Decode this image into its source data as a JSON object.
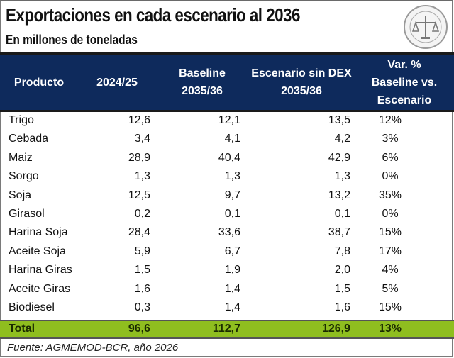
{
  "title": "Exportaciones en cada escenario al 2036",
  "subtitle": "En millones de toneladas",
  "logo": "bcr-seal-icon",
  "colors": {
    "header_bg": "#0e2a5c",
    "total_bg": "#8fbe1f"
  },
  "table": {
    "headers": [
      {
        "lines": [
          "Producto"
        ]
      },
      {
        "lines": [
          "2024/25"
        ]
      },
      {
        "lines": [
          "Baseline",
          "2035/36"
        ]
      },
      {
        "lines": [
          "Escenario sin DEX",
          "2035/36"
        ]
      },
      {
        "lines": [
          "Var. %",
          "Baseline vs.",
          "Escenario"
        ]
      }
    ],
    "rows": [
      [
        "Trigo",
        "12,6",
        "12,1",
        "13,5",
        "12%"
      ],
      [
        "Cebada",
        "3,4",
        "4,1",
        "4,2",
        "3%"
      ],
      [
        "Maiz",
        "28,9",
        "40,4",
        "42,9",
        "6%"
      ],
      [
        "Sorgo",
        "1,3",
        "1,3",
        "1,3",
        "0%"
      ],
      [
        "Soja",
        "12,5",
        "9,7",
        "13,2",
        "35%"
      ],
      [
        "Girasol",
        "0,2",
        "0,1",
        "0,1",
        "0%"
      ],
      [
        "Harina Soja",
        "28,4",
        "33,6",
        "38,7",
        "15%"
      ],
      [
        "Aceite Soja",
        "5,9",
        "6,7",
        "7,8",
        "17%"
      ],
      [
        "Harina Giras",
        "1,5",
        "1,9",
        "2,0",
        "4%"
      ],
      [
        "Aceite Giras",
        "1,6",
        "1,4",
        "1,5",
        "5%"
      ],
      [
        "Biodiesel",
        "0,3",
        "1,4",
        "1,6",
        "15%"
      ]
    ],
    "total": [
      "Total",
      "96,6",
      "112,7",
      "126,9",
      "13%"
    ]
  },
  "source": "Fuente: AGMEMOD-BCR, año 2026"
}
